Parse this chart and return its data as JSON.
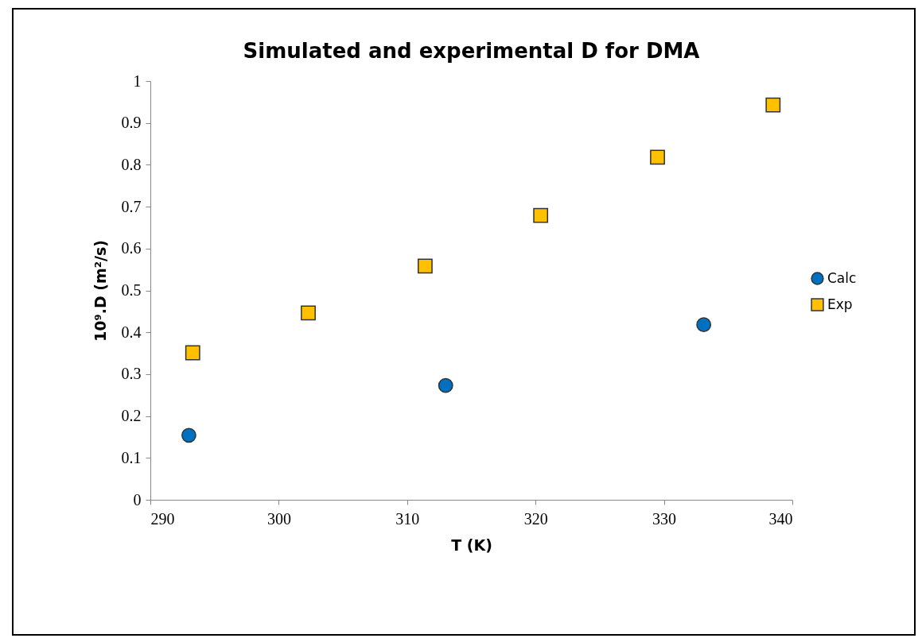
{
  "chart_data": {
    "type": "scatter",
    "title": "Simulated and experimental D for DMA",
    "xlabel": "T (K)",
    "ylabel": "10⁹.D (m²/s)",
    "xlim": [
      290,
      340
    ],
    "xticks": [
      290,
      300,
      310,
      320,
      330,
      340
    ],
    "ylim": [
      0,
      1
    ],
    "yticks": [
      0,
      0.1,
      0.2,
      0.3,
      0.4,
      0.5,
      0.6,
      0.7,
      0.8,
      0.9,
      1
    ],
    "grid": false,
    "legend": "right",
    "series": [
      {
        "name": "Calc",
        "color": "#0070c0",
        "marker": "circle",
        "x": [
          293,
          313,
          333.1
        ],
        "values": [
          0.154,
          0.273,
          0.418
        ]
      },
      {
        "name": "Exp",
        "color": "#ffc000",
        "marker": "square",
        "x": [
          293.3,
          302.3,
          311.4,
          320.4,
          329.5,
          338.5
        ],
        "values": [
          0.351,
          0.446,
          0.558,
          0.679,
          0.818,
          0.943
        ]
      }
    ]
  }
}
